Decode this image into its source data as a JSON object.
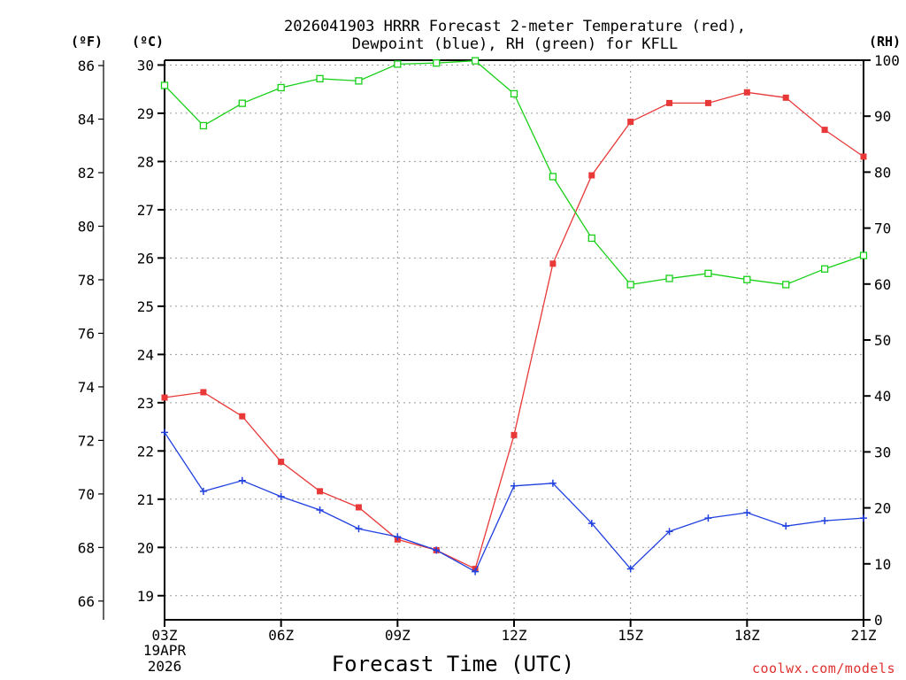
{
  "chart_data": {
    "type": "line",
    "title_line1": "2026041903 HRRR Forecast 2-meter Temperature (red),",
    "title_line2": "Dewpoint (blue), RH (green) for KFLL",
    "xlabel": "Forecast Time (UTC)",
    "x_ticks": [
      "03Z",
      "06Z",
      "09Z",
      "12Z",
      "15Z",
      "18Z",
      "21Z"
    ],
    "x_tick_hours": [
      0,
      3,
      6,
      9,
      12,
      15,
      18
    ],
    "x_start_date_line1": "19APR",
    "x_start_date_line2": "2026",
    "x_hours": [
      0,
      1,
      2,
      3,
      4,
      5,
      6,
      7,
      8,
      9,
      10,
      11,
      12,
      13,
      14,
      15,
      16,
      17,
      18
    ],
    "axes": {
      "fahrenheit": {
        "label": "(ºF)",
        "ylim": [
          65.3,
          86.2
        ],
        "ticks": [
          66,
          68,
          70,
          72,
          74,
          76,
          78,
          80,
          82,
          84,
          86
        ]
      },
      "celsius": {
        "label": "(ºC)",
        "ylim": [
          18.5,
          30.1
        ],
        "ticks": [
          19,
          20,
          21,
          22,
          23,
          24,
          25,
          26,
          27,
          28,
          29,
          30
        ]
      },
      "rh": {
        "label": "(RH)",
        "ylim": [
          0,
          100
        ],
        "ticks": [
          0,
          10,
          20,
          30,
          40,
          50,
          60,
          70,
          80,
          90,
          100
        ]
      }
    },
    "series": [
      {
        "name": "Temperature",
        "axis": "fahrenheit",
        "color": "#e83838",
        "marker": "filled-square",
        "values": [
          73.6,
          73.8,
          72.9,
          71.2,
          70.1,
          69.5,
          68.3,
          67.9,
          67.2,
          72.2,
          78.6,
          81.9,
          83.9,
          84.6,
          84.6,
          85.0,
          84.8,
          83.6,
          82.6
        ]
      },
      {
        "name": "Dewpoint",
        "axis": "fahrenheit",
        "color": "#2040e0",
        "marker": "plus",
        "values": [
          72.3,
          70.1,
          70.5,
          69.9,
          69.4,
          68.7,
          68.4,
          67.9,
          67.1,
          70.3,
          70.4,
          68.9,
          67.2,
          68.6,
          69.1,
          69.3,
          68.8,
          69.0,
          69.1
        ]
      },
      {
        "name": "RH",
        "axis": "rh",
        "color": "#18d018",
        "marker": "open-square",
        "values": [
          95.5,
          88.3,
          92.3,
          95.1,
          96.7,
          96.3,
          99.3,
          99.5,
          99.9,
          94.0,
          79.2,
          68.2,
          59.9,
          61.0,
          61.9,
          60.8,
          59.9,
          62.7,
          65.1
        ]
      }
    ],
    "grid": true,
    "credit": "coolwx.com/models"
  }
}
